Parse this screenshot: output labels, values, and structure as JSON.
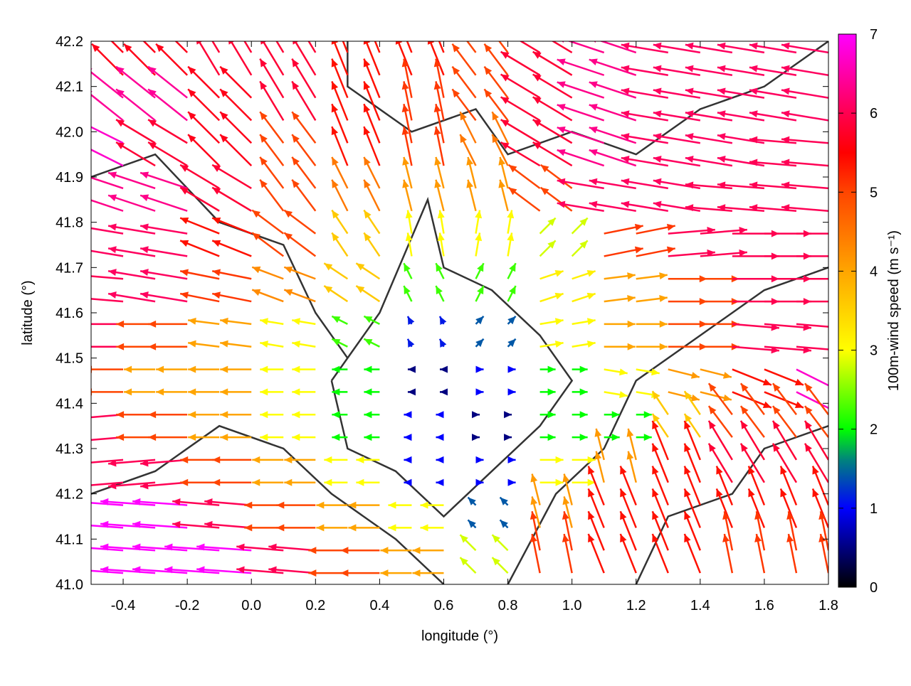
{
  "chart_data": {
    "type": "vector-field",
    "xlabel": "longitude (°)",
    "ylabel": "latitude (°)",
    "xlim": [
      -0.5,
      1.8
    ],
    "ylim": [
      41.0,
      42.2
    ],
    "x_ticks": [
      "-0.4",
      "-0.2",
      "0.0",
      "0.2",
      "0.4",
      "0.6",
      "0.8",
      "1.0",
      "1.2",
      "1.4",
      "1.6",
      "1.8"
    ],
    "y_ticks": [
      "41.0",
      "41.1",
      "41.2",
      "41.3",
      "41.4",
      "41.5",
      "41.6",
      "41.7",
      "41.8",
      "41.9",
      "42.0",
      "42.1",
      "42.2"
    ],
    "colorbar": {
      "label": "100m-wind speed (m s⁻¹)",
      "range": [
        0,
        7
      ],
      "ticks": [
        "0",
        "1",
        "2",
        "3",
        "4",
        "5",
        "6",
        "7"
      ],
      "stops": [
        [
          0,
          "#000000"
        ],
        [
          1,
          "#0000ff"
        ],
        [
          1.6,
          "#008080"
        ],
        [
          2,
          "#00ff00"
        ],
        [
          3,
          "#ffff00"
        ],
        [
          4,
          "#ffa500"
        ],
        [
          5,
          "#ff4500"
        ],
        [
          5.5,
          "#ff0000"
        ],
        [
          6,
          "#ff0050"
        ],
        [
          7,
          "#ff00ff"
        ]
      ]
    },
    "grid": false,
    "vectors": {
      "lon": [
        -0.45,
        -0.25,
        -0.05,
        0.15,
        0.35,
        0.55,
        0.75,
        0.95,
        1.15,
        1.35,
        1.55,
        1.75
      ],
      "lat": [
        42.15,
        42.05,
        41.95,
        41.85,
        41.75,
        41.65,
        41.55,
        41.45,
        41.35,
        41.25,
        41.15,
        41.05
      ],
      "u": [
        [
          -4,
          -4,
          -3,
          -3,
          -2,
          -2,
          -3,
          -5,
          -6,
          -6,
          -6,
          -6
        ],
        [
          -5,
          -5,
          -4,
          -3,
          -2,
          -1,
          -3,
          -5,
          -6,
          -6,
          -6,
          -6
        ],
        [
          -6,
          -5,
          -4,
          -3,
          -2,
          -1,
          -2,
          -5,
          -6,
          -6,
          -6,
          -6
        ],
        [
          -6,
          -6,
          -5,
          -3,
          -2,
          -1,
          -1,
          -4,
          -6,
          -6,
          -6,
          -6
        ],
        [
          -6,
          -6,
          -5,
          -4,
          -2,
          -0.5,
          0.5,
          2,
          5,
          6,
          6,
          6
        ],
        [
          -6,
          -6,
          -5,
          -4,
          -3,
          -1,
          1,
          3,
          4,
          5,
          6,
          6
        ],
        [
          -6,
          -5,
          -4,
          -3,
          -2,
          -0.5,
          1,
          3,
          4,
          5,
          6,
          6
        ],
        [
          -5,
          -4,
          -4,
          -3,
          -2,
          -0.5,
          1,
          2,
          3,
          4,
          5,
          6
        ],
        [
          -6,
          -5,
          -4,
          -3,
          -2,
          -1,
          0.5,
          2,
          2,
          -2,
          -3,
          -3
        ],
        [
          -6,
          -6,
          -5,
          -4,
          -3,
          -1,
          1,
          3,
          -1,
          -2,
          -3,
          -3
        ],
        [
          -7,
          -7,
          -6,
          -5,
          -4,
          -3,
          -1,
          -1,
          -2,
          -2,
          -2,
          -2
        ],
        [
          -7,
          -7,
          -7,
          -6,
          -5,
          -4,
          -2,
          -1,
          -2,
          -2,
          -1,
          -1
        ]
      ],
      "v": [
        [
          4,
          4,
          5,
          5,
          5,
          5,
          4,
          3,
          2,
          1,
          1,
          1
        ],
        [
          4,
          4,
          4,
          5,
          5,
          5,
          4,
          3,
          2,
          1,
          1,
          1
        ],
        [
          3,
          3,
          4,
          4,
          5,
          5,
          4,
          3,
          2,
          1,
          1,
          0.5
        ],
        [
          2,
          2,
          3,
          4,
          4,
          4,
          4,
          3,
          1,
          1,
          0.5,
          0.5
        ],
        [
          1,
          1,
          2,
          3,
          3,
          3,
          3,
          2,
          1,
          0.5,
          0,
          0
        ],
        [
          0.5,
          1,
          1,
          1.5,
          2,
          2,
          2,
          1,
          0.5,
          0,
          0,
          0
        ],
        [
          0,
          0,
          0.5,
          0.5,
          1,
          1,
          1,
          0.5,
          0,
          0,
          -0.5,
          -0.5
        ],
        [
          0,
          0,
          0,
          0,
          0,
          0,
          0,
          0,
          -0.5,
          -1,
          -2,
          -3
        ],
        [
          -0.5,
          0,
          0,
          0,
          0,
          0,
          0,
          0,
          0,
          3,
          4,
          4
        ],
        [
          -0.5,
          -0.5,
          0,
          0,
          0,
          0,
          0,
          0,
          4,
          5,
          5,
          5
        ],
        [
          0.5,
          0.5,
          0.5,
          0,
          0,
          0,
          1,
          4,
          5,
          5,
          5,
          5
        ],
        [
          0.5,
          0.5,
          0.5,
          0.5,
          0,
          0,
          2,
          5,
          5,
          5,
          5,
          5
        ]
      ]
    },
    "contour_color": "#333333",
    "contours": [
      [
        [
          0.25,
          41.45
        ],
        [
          0.4,
          41.6
        ],
        [
          0.55,
          41.85
        ],
        [
          0.6,
          41.7
        ],
        [
          0.75,
          41.65
        ],
        [
          0.9,
          41.55
        ],
        [
          1.0,
          41.45
        ],
        [
          0.9,
          41.35
        ],
        [
          0.75,
          41.25
        ],
        [
          0.6,
          41.15
        ],
        [
          0.45,
          41.25
        ],
        [
          0.3,
          41.3
        ],
        [
          0.25,
          41.45
        ]
      ],
      [
        [
          -0.5,
          41.9
        ],
        [
          -0.3,
          41.95
        ],
        [
          -0.1,
          41.8
        ],
        [
          0.1,
          41.75
        ],
        [
          0.2,
          41.6
        ],
        [
          0.3,
          41.5
        ]
      ],
      [
        [
          0.8,
          41.0
        ],
        [
          0.95,
          41.2
        ],
        [
          1.1,
          41.3
        ],
        [
          1.2,
          41.45
        ],
        [
          1.4,
          41.55
        ],
        [
          1.6,
          41.65
        ],
        [
          1.8,
          41.7
        ]
      ],
      [
        [
          0.3,
          42.2
        ],
        [
          0.3,
          42.1
        ],
        [
          0.5,
          42.0
        ],
        [
          0.7,
          42.05
        ],
        [
          0.8,
          41.95
        ],
        [
          1.0,
          42.0
        ],
        [
          1.2,
          41.95
        ],
        [
          1.4,
          42.05
        ],
        [
          1.6,
          42.1
        ],
        [
          1.8,
          42.2
        ]
      ],
      [
        [
          -0.5,
          41.2
        ],
        [
          -0.3,
          41.25
        ],
        [
          -0.1,
          41.35
        ],
        [
          0.1,
          41.3
        ],
        [
          0.25,
          41.2
        ],
        [
          0.45,
          41.1
        ],
        [
          0.6,
          41.0
        ]
      ],
      [
        [
          1.2,
          41.0
        ],
        [
          1.3,
          41.15
        ],
        [
          1.5,
          41.2
        ],
        [
          1.6,
          41.3
        ],
        [
          1.8,
          41.35
        ]
      ]
    ]
  }
}
